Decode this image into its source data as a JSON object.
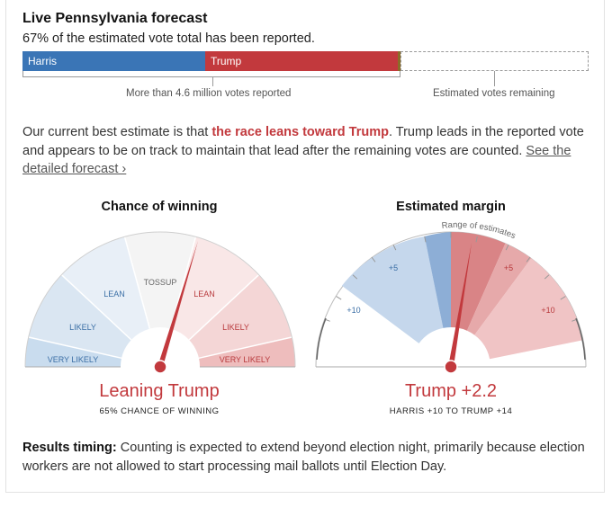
{
  "header": {
    "title": "Live Pennsylvania forecast",
    "subtitle": "67% of the estimated vote total has been reported."
  },
  "vote_bar": {
    "harris_label": "Harris",
    "trump_label": "Trump",
    "reported_label": "More than 4.6 million votes reported",
    "remaining_label": "Estimated votes remaining",
    "reported_fraction": 0.67,
    "colors": {
      "harris": "#3a75b6",
      "trump": "#c2393d",
      "other": "#8a6d28"
    }
  },
  "summary": {
    "prefix": "Our current best estimate is that ",
    "lean_text": "the race leans toward Trump",
    "suffix": ". Trump leads in the reported vote and appears to be on track to maintain that lead after the remaining votes are counted. ",
    "link_text": "See the detailed forecast ›"
  },
  "chance_gauge": {
    "title": "Chance of winning",
    "segment_labels": {
      "very_likely_left": "VERY LIKELY",
      "likely_left": "LIKELY",
      "lean_left": "LEAN",
      "tossup": "TOSSUP",
      "lean_right": "LEAN",
      "likely_right": "LIKELY",
      "very_likely_right": "VERY LIKELY"
    },
    "result": "Leaning Trump",
    "result_sub": "65% CHANCE OF WINNING",
    "trump_chance_pct": 65
  },
  "margin_gauge": {
    "title": "Estimated margin",
    "range_label": "Range of estimates",
    "tick_labels": {
      "left_5": "+5",
      "left_10": "+10",
      "right_5": "+5",
      "right_10": "+10"
    },
    "result": "Trump +2.2",
    "result_sub": "HARRIS +10 TO TRUMP +14",
    "estimate": 2.2,
    "range_low": -10,
    "range_high": 14
  },
  "timing": {
    "label": "Results timing:",
    "text": " Counting is expected to extend beyond election night, primarily because election workers are not allowed to start processing mail ballots until Election Day."
  }
}
